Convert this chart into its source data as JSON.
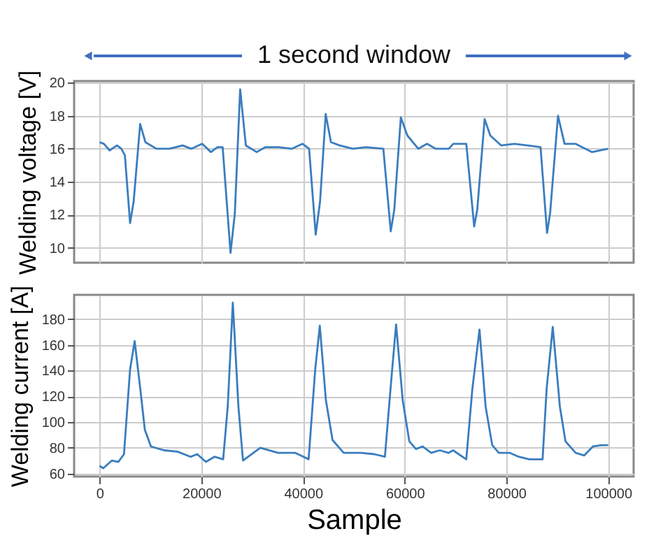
{
  "chart_data": [
    {
      "type": "line",
      "annotations": [
        "1 second window"
      ],
      "ylabel": "Welding voltage [V]",
      "color": "#3a7dbf",
      "grid": true,
      "tick_labels": "y",
      "xlim": [
        -5000,
        105000
      ],
      "xticks": [
        0,
        20000,
        40000,
        60000,
        80000,
        100000
      ],
      "ylim": [
        9.1,
        20.1
      ],
      "yticks": [
        10,
        12,
        14,
        16,
        18,
        20
      ],
      "x": [
        0,
        860,
        1970,
        3430,
        4290,
        4980,
        6000,
        6700,
        7980,
        9010,
        11160,
        13730,
        16310,
        18030,
        20170,
        21890,
        23180,
        24200,
        25750,
        26600,
        27640,
        28760,
        30900,
        32620,
        35190,
        37770,
        39910,
        41200,
        42490,
        43350,
        44460,
        45490,
        47210,
        49790,
        52360,
        55790,
        57250,
        57940,
        59230,
        60520,
        62660,
        64380,
        66090,
        68670,
        69530,
        72100,
        73650,
        74250,
        75710,
        76820,
        78970,
        81550,
        84120,
        86700,
        87980,
        88580,
        90130,
        91420,
        93560,
        94850,
        96830,
        100000
      ],
      "values": [
        16.4,
        16.3,
        15.9,
        16.2,
        16.0,
        15.6,
        11.5,
        12.8,
        17.5,
        16.4,
        16.0,
        16.0,
        16.2,
        16.0,
        16.3,
        15.8,
        16.1,
        16.1,
        9.7,
        12.1,
        19.6,
        16.2,
        15.8,
        16.1,
        16.1,
        16.0,
        16.3,
        16.0,
        10.8,
        12.8,
        18.1,
        16.4,
        16.2,
        16.0,
        16.1,
        16.0,
        11.0,
        12.3,
        17.9,
        16.8,
        16.0,
        16.3,
        16.0,
        16.0,
        16.3,
        16.3,
        11.3,
        12.3,
        17.8,
        16.8,
        16.2,
        16.3,
        16.2,
        16.1,
        10.9,
        12.1,
        18.0,
        16.3,
        16.3,
        16.1,
        15.8,
        16.0
      ]
    },
    {
      "type": "line",
      "xlabel": "Sample",
      "ylabel": "Welding current [A]",
      "color": "#3a7dbf",
      "grid": true,
      "xlim": [
        -5000,
        105000
      ],
      "xticks": [
        0,
        20000,
        40000,
        60000,
        80000,
        100000
      ],
      "ylim": [
        57.6,
        199
      ],
      "yticks": [
        60,
        80,
        100,
        120,
        140,
        160,
        180
      ],
      "x": [
        0,
        700,
        2400,
        3700,
        4800,
        6000,
        6900,
        8000,
        8900,
        10100,
        12700,
        15300,
        17900,
        19200,
        20900,
        22600,
        24300,
        25200,
        26200,
        27300,
        28200,
        31600,
        35100,
        38500,
        41100,
        42400,
        43300,
        44500,
        45800,
        48000,
        51400,
        54000,
        56100,
        57400,
        58300,
        59600,
        60900,
        62200,
        63500,
        65200,
        66900,
        68600,
        69500,
        72100,
        73300,
        74700,
        75900,
        77200,
        78500,
        80700,
        82400,
        84500,
        87100,
        87900,
        89100,
        90500,
        91600,
        93600,
        95300,
        97000,
        98700,
        100000
      ],
      "values": [
        66,
        64,
        70,
        69,
        75,
        141,
        163,
        126,
        94,
        81,
        78,
        77,
        73,
        75,
        69,
        73,
        71,
        112,
        193,
        112,
        70,
        80,
        76,
        76,
        71,
        141,
        175,
        117,
        86,
        76,
        76,
        75,
        73,
        135,
        176,
        117,
        85,
        79,
        81,
        76,
        78,
        76,
        78,
        71,
        126,
        172,
        112,
        82,
        76,
        76,
        73,
        71,
        71,
        126,
        174,
        112,
        85,
        76,
        74,
        81,
        82,
        82
      ]
    }
  ]
}
